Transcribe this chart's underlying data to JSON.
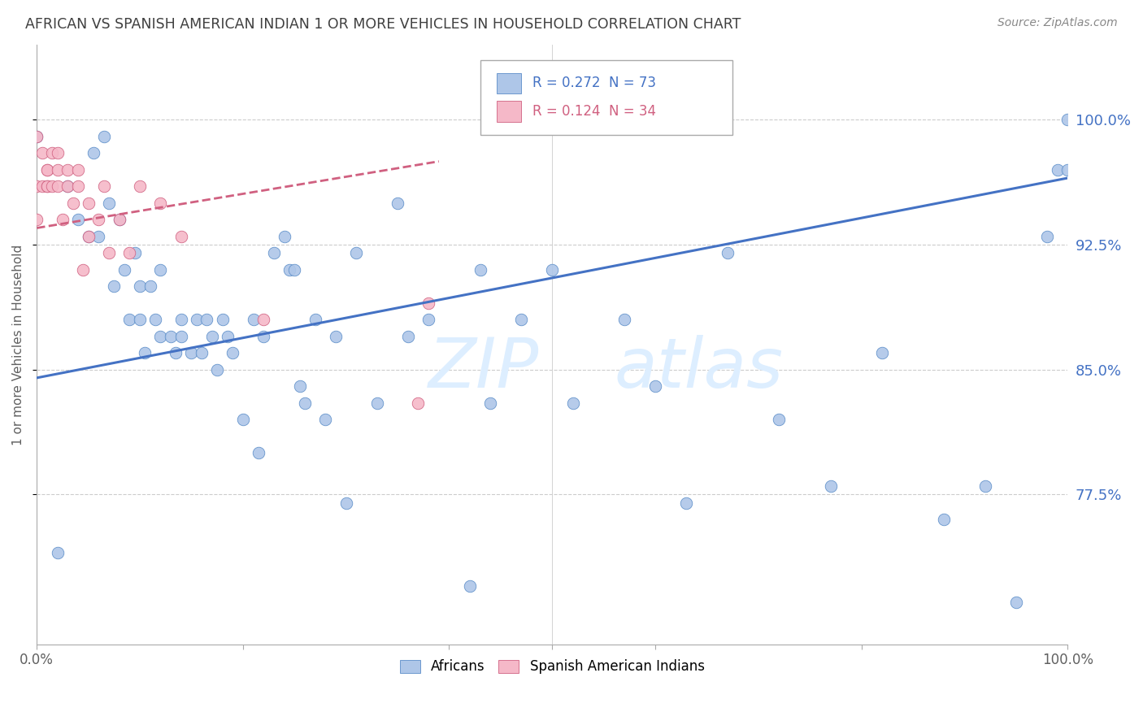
{
  "title": "AFRICAN VS SPANISH AMERICAN INDIAN 1 OR MORE VEHICLES IN HOUSEHOLD CORRELATION CHART",
  "source": "Source: ZipAtlas.com",
  "ylabel": "1 or more Vehicles in Household",
  "yticks": [
    0.775,
    0.85,
    0.925,
    1.0
  ],
  "ytick_labels": [
    "77.5%",
    "85.0%",
    "92.5%",
    "100.0%"
  ],
  "xlim": [
    0.0,
    1.0
  ],
  "ylim": [
    0.685,
    1.045
  ],
  "blue_R": 0.272,
  "blue_N": 73,
  "pink_R": 0.124,
  "pink_N": 34,
  "blue_color": "#aec6e8",
  "blue_edge_color": "#5b8dc8",
  "blue_line_color": "#4472c4",
  "pink_color": "#f5b8c8",
  "pink_edge_color": "#d06080",
  "pink_line_color": "#d06080",
  "legend_R_color": "#4472c4",
  "legend_R2_color": "#d06080",
  "watermark_color": "#ddeeff",
  "title_color": "#404040",
  "right_label_color": "#4472c4",
  "source_color": "#888888",
  "grid_color": "#cccccc",
  "blue_trend_start_y": 0.845,
  "blue_trend_end_y": 0.965,
  "pink_trend_start_y": 0.935,
  "pink_trend_end_y": 0.975,
  "pink_trend_end_x": 0.39,
  "blue_x": [
    0.0,
    0.02,
    0.03,
    0.04,
    0.05,
    0.055,
    0.06,
    0.065,
    0.07,
    0.075,
    0.08,
    0.085,
    0.09,
    0.095,
    0.1,
    0.1,
    0.105,
    0.11,
    0.115,
    0.12,
    0.12,
    0.13,
    0.135,
    0.14,
    0.14,
    0.15,
    0.155,
    0.16,
    0.165,
    0.17,
    0.175,
    0.18,
    0.185,
    0.19,
    0.2,
    0.21,
    0.215,
    0.22,
    0.23,
    0.24,
    0.245,
    0.25,
    0.255,
    0.26,
    0.27,
    0.28,
    0.29,
    0.3,
    0.31,
    0.33,
    0.35,
    0.36,
    0.38,
    0.42,
    0.43,
    0.44,
    0.47,
    0.5,
    0.52,
    0.57,
    0.6,
    0.63,
    0.67,
    0.72,
    0.77,
    0.82,
    0.88,
    0.92,
    0.95,
    0.98,
    0.99,
    1.0,
    1.0
  ],
  "blue_y": [
    0.99,
    0.74,
    0.96,
    0.94,
    0.93,
    0.98,
    0.93,
    0.99,
    0.95,
    0.9,
    0.94,
    0.91,
    0.88,
    0.92,
    0.9,
    0.88,
    0.86,
    0.9,
    0.88,
    0.87,
    0.91,
    0.87,
    0.86,
    0.88,
    0.87,
    0.86,
    0.88,
    0.86,
    0.88,
    0.87,
    0.85,
    0.88,
    0.87,
    0.86,
    0.82,
    0.88,
    0.8,
    0.87,
    0.92,
    0.93,
    0.91,
    0.91,
    0.84,
    0.83,
    0.88,
    0.82,
    0.87,
    0.77,
    0.92,
    0.83,
    0.95,
    0.87,
    0.88,
    0.72,
    0.91,
    0.83,
    0.88,
    0.91,
    0.83,
    0.88,
    0.84,
    0.77,
    0.92,
    0.82,
    0.78,
    0.86,
    0.76,
    0.78,
    0.71,
    0.93,
    0.97,
    0.97,
    1.0
  ],
  "pink_x": [
    0.0,
    0.0,
    0.0,
    0.005,
    0.005,
    0.01,
    0.01,
    0.01,
    0.01,
    0.015,
    0.015,
    0.02,
    0.02,
    0.02,
    0.025,
    0.03,
    0.03,
    0.035,
    0.04,
    0.04,
    0.045,
    0.05,
    0.05,
    0.06,
    0.065,
    0.07,
    0.08,
    0.09,
    0.1,
    0.12,
    0.14,
    0.22,
    0.37,
    0.38
  ],
  "pink_y": [
    0.96,
    0.94,
    0.99,
    0.98,
    0.96,
    0.97,
    0.96,
    0.96,
    0.97,
    0.98,
    0.96,
    0.96,
    0.97,
    0.98,
    0.94,
    0.96,
    0.97,
    0.95,
    0.96,
    0.97,
    0.91,
    0.93,
    0.95,
    0.94,
    0.96,
    0.92,
    0.94,
    0.92,
    0.96,
    0.95,
    0.93,
    0.88,
    0.83,
    0.89
  ]
}
